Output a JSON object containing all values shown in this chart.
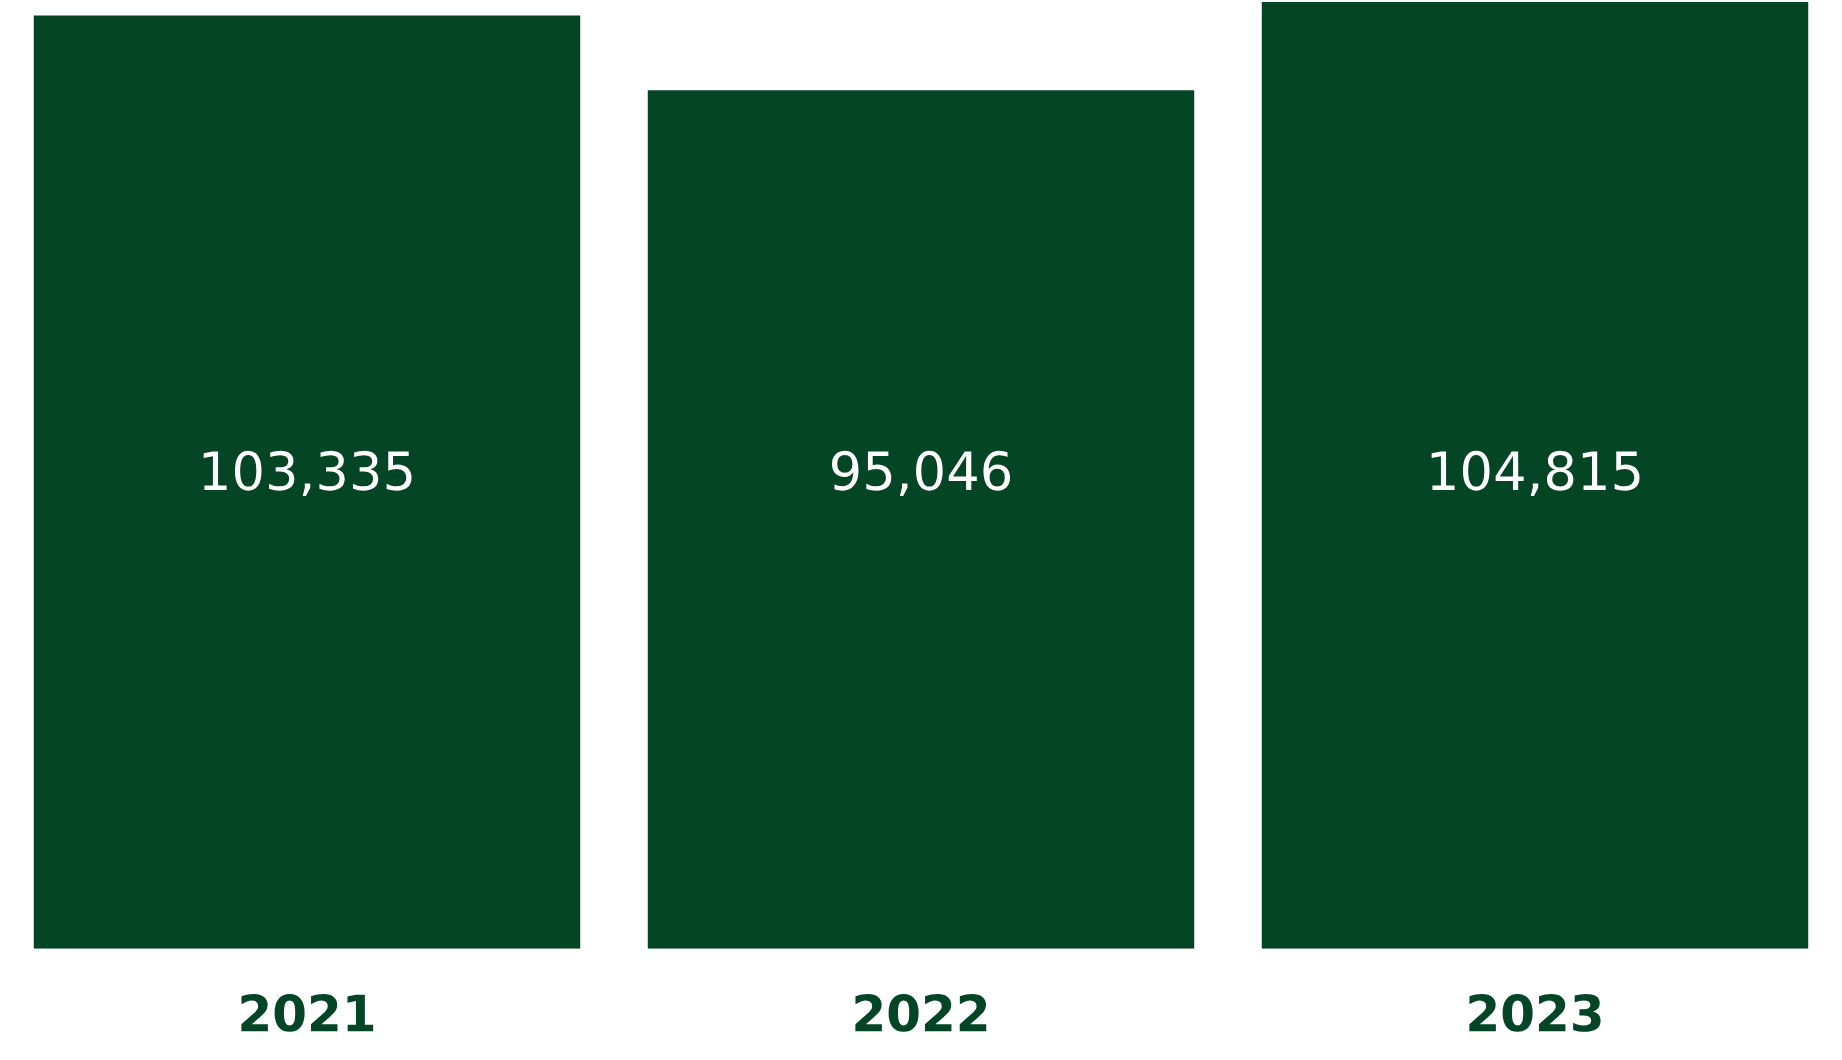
{
  "chart_data": {
    "type": "bar",
    "categories": [
      "2021",
      "2022",
      "2023"
    ],
    "values": [
      103335,
      95046,
      104815
    ],
    "color": "#034525",
    "value_labels": [
      "103,335",
      "95,046",
      "104,815"
    ],
    "grid": false
  }
}
